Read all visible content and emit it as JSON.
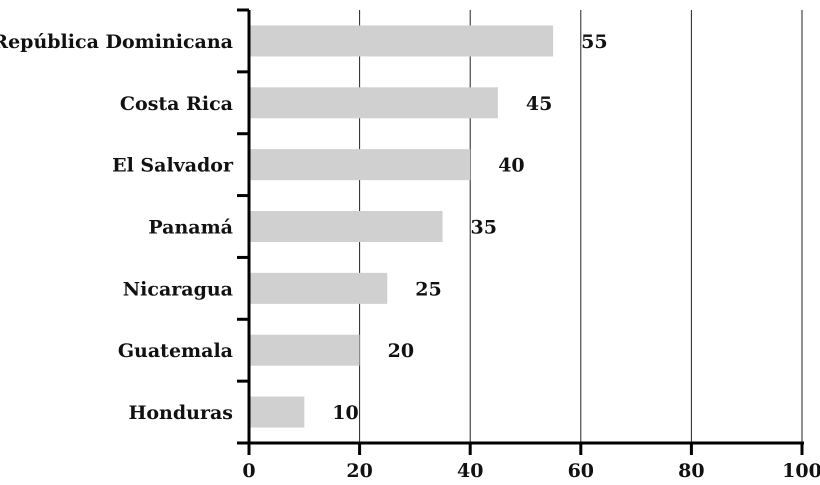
{
  "chart_data": {
    "type": "bar",
    "orientation": "horizontal",
    "categories": [
      "República Dominicana",
      "Costa Rica",
      "El Salvador",
      "Panamá",
      "Nicaragua",
      "Guatemala",
      "Honduras"
    ],
    "values": [
      55,
      45,
      40,
      35,
      25,
      20,
      10
    ],
    "x_ticks": [
      "0",
      "20",
      "40",
      "60",
      "80",
      "100"
    ],
    "xlim": [
      0,
      100
    ],
    "grid": true,
    "bar_color": "#d0d0d0",
    "title": "",
    "xlabel": "",
    "ylabel": ""
  }
}
